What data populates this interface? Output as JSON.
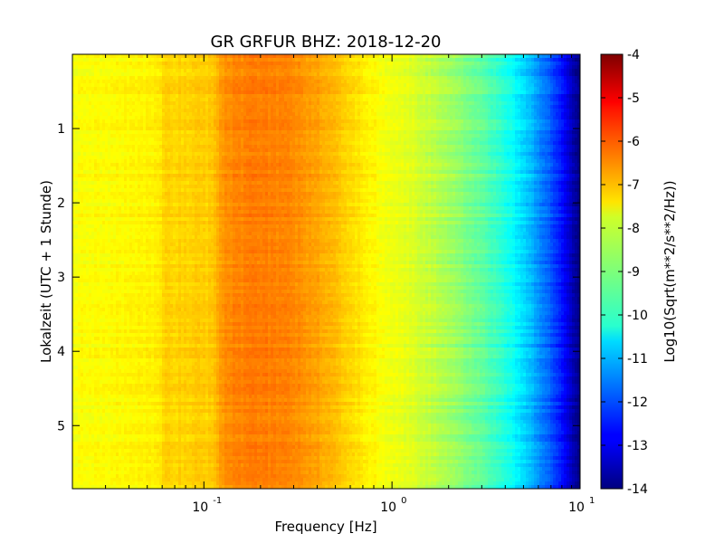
{
  "chart_data": {
    "type": "heatmap",
    "title": "GR GRFUR BHZ: 2018-12-20",
    "xlabel": "Frequency [Hz]",
    "ylabel": "Lokalzeit (UTC + 1 Stunde)",
    "x_scale": "log",
    "xlim": [
      0.02,
      10
    ],
    "ylim": [
      5.85,
      0
    ],
    "x_ticks": [
      {
        "value": 0.1,
        "label": "10",
        "exp": "-1"
      },
      {
        "value": 1,
        "label": "10",
        "exp": "0"
      },
      {
        "value": 10,
        "label": "10",
        "exp": "1"
      }
    ],
    "y_ticks": [
      {
        "value": 1,
        "label": "1"
      },
      {
        "value": 2,
        "label": "2"
      },
      {
        "value": 3,
        "label": "3"
      },
      {
        "value": 4,
        "label": "4"
      },
      {
        "value": 5,
        "label": "5"
      }
    ],
    "colorbar": {
      "label": "Log10(Sqrt(m**2/s**2/Hz))",
      "range": [
        -14,
        -4
      ],
      "colormap": "jet",
      "ticks": [
        "-4",
        "-5",
        "-6",
        "-7",
        "-8",
        "-9",
        "-10",
        "-11",
        "-12",
        "-13",
        "-14"
      ]
    },
    "frequency_profile": {
      "x": [
        0.02,
        0.04,
        0.058,
        0.06,
        0.11,
        0.12,
        0.13,
        0.2,
        0.3,
        0.45,
        0.6,
        0.8,
        1.0,
        1.3,
        2.0,
        3.0,
        4.0,
        5.0,
        6.0,
        7.0,
        8.0,
        9.0,
        10.0
      ],
      "values": [
        -7.8,
        -7.7,
        -7.6,
        -7.35,
        -7.25,
        -6.9,
        -6.6,
        -6.45,
        -6.6,
        -6.95,
        -7.35,
        -7.7,
        -7.9,
        -8.1,
        -8.6,
        -9.3,
        -9.9,
        -10.6,
        -11.3,
        -11.9,
        -12.6,
        -13.4,
        -14.0
      ]
    }
  }
}
